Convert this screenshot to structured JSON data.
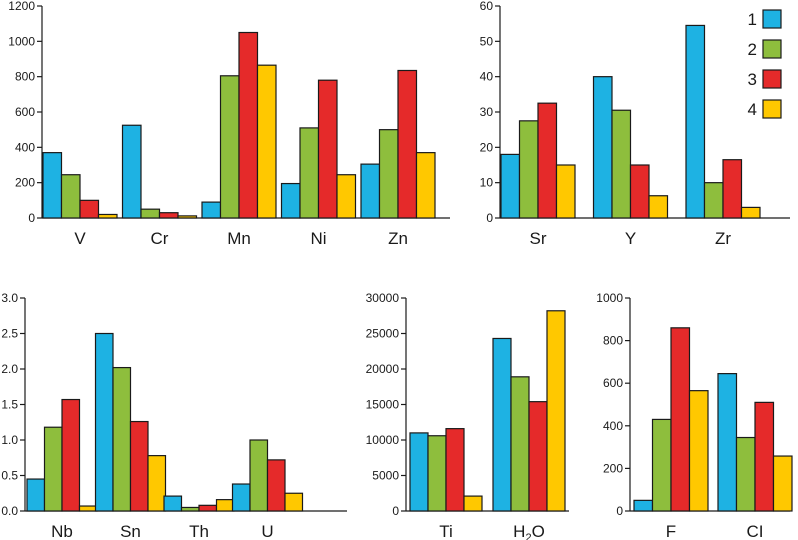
{
  "colors": {
    "s1": "#1eb2e3",
    "s2": "#8ebe3d",
    "s3": "#e52a2a",
    "s4": "#ffc800"
  },
  "legend": {
    "items": [
      {
        "label": "1",
        "color": "#1eb2e3"
      },
      {
        "label": "2",
        "color": "#8ebe3d"
      },
      {
        "label": "3",
        "color": "#e52a2a"
      },
      {
        "label": "4",
        "color": "#ffc800"
      }
    ]
  },
  "chart_data": [
    {
      "type": "bar",
      "categories": [
        "V",
        "Cr",
        "Mn",
        "Ni",
        "Zn"
      ],
      "ylim": [
        0,
        1200
      ],
      "yticks": [
        "0",
        "200",
        "400",
        "600",
        "800",
        "1000",
        "1200"
      ],
      "series": [
        {
          "name": "1",
          "values": [
            370,
            525,
            90,
            195,
            305
          ]
        },
        {
          "name": "2",
          "values": [
            245,
            50,
            805,
            510,
            500
          ]
        },
        {
          "name": "3",
          "values": [
            100,
            30,
            1050,
            780,
            835
          ]
        },
        {
          "name": "4",
          "values": [
            20,
            12,
            865,
            245,
            370
          ]
        }
      ]
    },
    {
      "type": "bar",
      "categories": [
        "Sr",
        "Y",
        "Zr"
      ],
      "ylim": [
        0,
        60
      ],
      "yticks": [
        "0",
        "10",
        "20",
        "30",
        "40",
        "50",
        "60"
      ],
      "series": [
        {
          "name": "1",
          "values": [
            18,
            40,
            54.5
          ]
        },
        {
          "name": "2",
          "values": [
            27.5,
            30.5,
            10
          ]
        },
        {
          "name": "3",
          "values": [
            32.5,
            15,
            16.5
          ]
        },
        {
          "name": "4",
          "values": [
            15,
            6.3,
            3
          ]
        }
      ]
    },
    {
      "type": "bar",
      "categories": [
        "Nb",
        "Sn",
        "Th",
        "U"
      ],
      "ylim": [
        0,
        3.0
      ],
      "yticks": [
        "0.0",
        "0.5",
        "1.0",
        "1.5",
        "2.0",
        "2.5",
        "3.0"
      ],
      "series": [
        {
          "name": "1",
          "values": [
            0.45,
            2.5,
            0.21,
            0.38
          ]
        },
        {
          "name": "2",
          "values": [
            1.18,
            2.02,
            0.05,
            1.0
          ]
        },
        {
          "name": "3",
          "values": [
            1.57,
            1.26,
            0.08,
            0.72
          ]
        },
        {
          "name": "4",
          "values": [
            0.07,
            0.78,
            0.16,
            0.25
          ]
        }
      ]
    },
    {
      "type": "bar",
      "categories": [
        "Ti",
        "H2O"
      ],
      "ylim": [
        0,
        30000
      ],
      "yticks": [
        "0",
        "5000",
        "10000",
        "15000",
        "20000",
        "25000",
        "30000"
      ],
      "series": [
        {
          "name": "1",
          "values": [
            11000,
            24300
          ]
        },
        {
          "name": "2",
          "values": [
            10600,
            18900
          ]
        },
        {
          "name": "3",
          "values": [
            11600,
            15400
          ]
        },
        {
          "name": "4",
          "values": [
            2100,
            28200
          ]
        }
      ]
    },
    {
      "type": "bar",
      "categories": [
        "F",
        "Cl"
      ],
      "ylim": [
        0,
        1000
      ],
      "yticks": [
        "0",
        "200",
        "400",
        "600",
        "800",
        "1000"
      ],
      "series": [
        {
          "name": "1",
          "values": [
            50,
            645
          ]
        },
        {
          "name": "2",
          "values": [
            430,
            345
          ]
        },
        {
          "name": "3",
          "values": [
            860,
            510
          ]
        },
        {
          "name": "4",
          "values": [
            565,
            258
          ]
        }
      ]
    }
  ]
}
